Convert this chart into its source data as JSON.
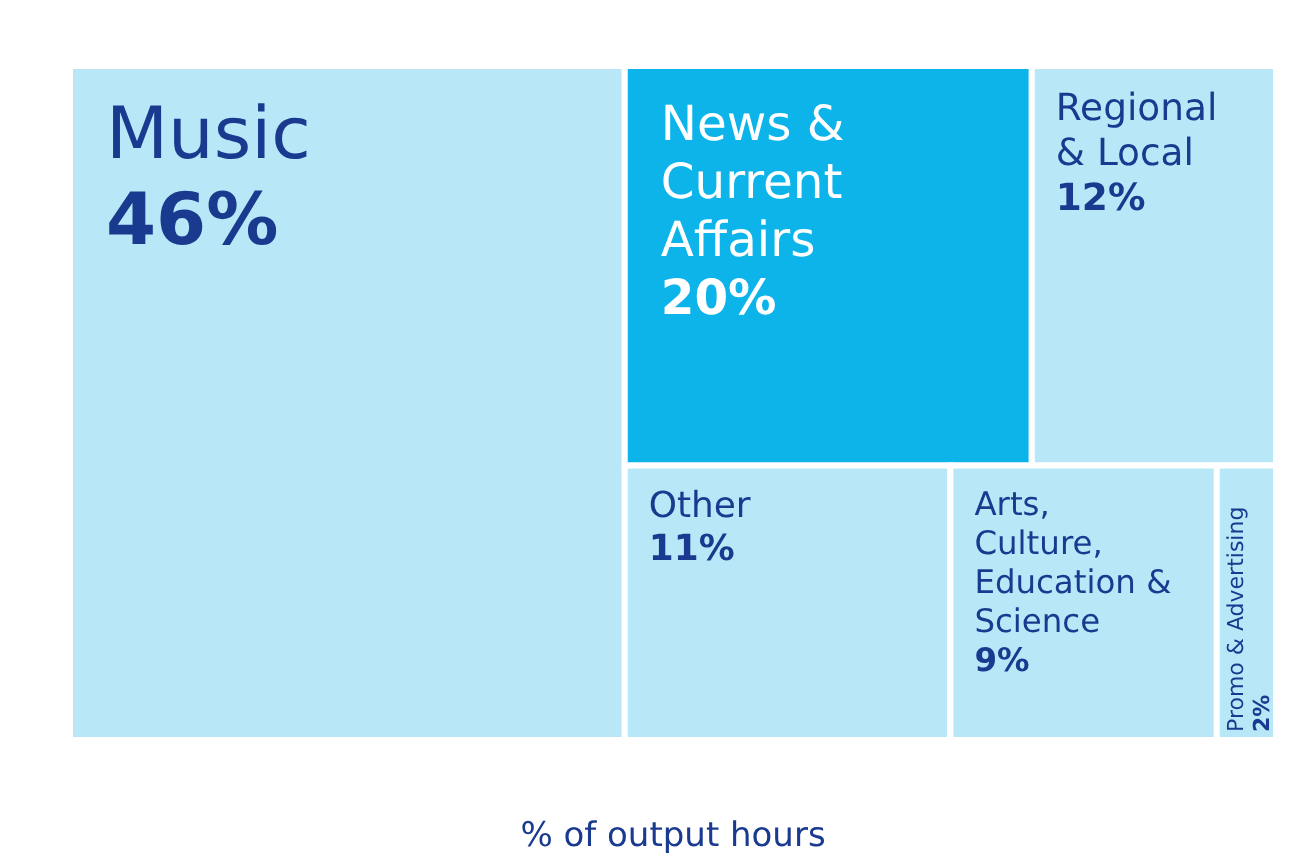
{
  "chart_data": {
    "type": "other",
    "categories": [
      "Music",
      "News & Current Affairs",
      "Regional & Local",
      "Other",
      "Arts, Culture, Education & Science",
      "Promo & Advertising"
    ],
    "values": [
      46,
      20,
      12,
      11,
      9,
      2
    ],
    "value_labels": [
      "46%",
      "20%",
      "12%",
      "11%",
      "9%",
      "2%"
    ],
    "colors": [
      "#b8e8f8",
      "#0cb4ea",
      "#b8e8f8",
      "#b8e8f8",
      "#b8e8f8",
      "#b8e8f8"
    ],
    "xlabel": "% of output hours"
  }
}
